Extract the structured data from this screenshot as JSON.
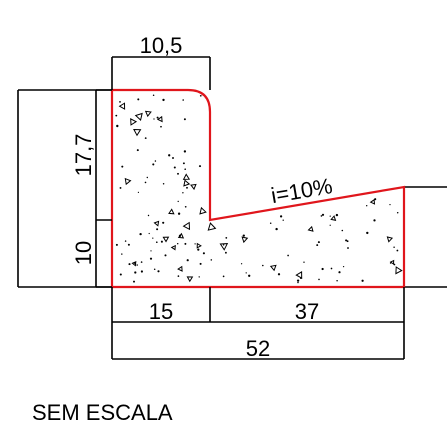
{
  "drawing": {
    "note": "SEM ESCALA",
    "slope_label": "i=10%",
    "outline_color": "#e0161c",
    "line_color": "#000000",
    "dimensions": {
      "top_width": "10,5",
      "upper_height": "17,7",
      "lower_height": "10",
      "bottom_left": "15",
      "bottom_right": "37",
      "total_width": "52"
    }
  }
}
